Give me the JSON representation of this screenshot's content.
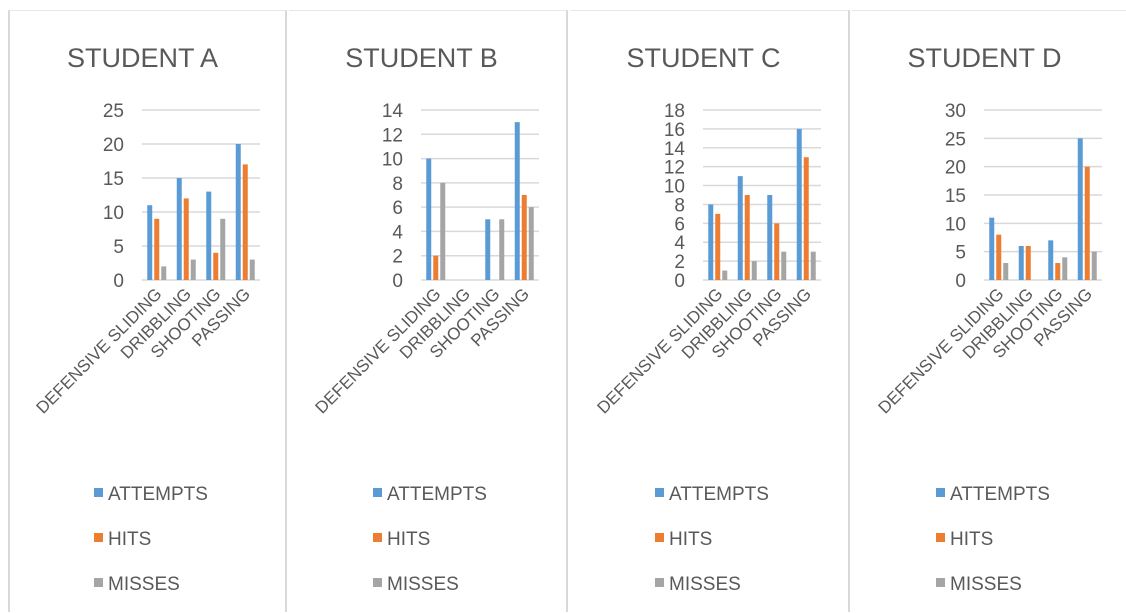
{
  "colors": {
    "attempts": "#5b9bd5",
    "hits": "#ed7d31",
    "misses": "#a5a5a5",
    "grid": "#d9d9d9",
    "text": "#595959"
  },
  "legend": [
    "ATTEMPTS",
    "HITS",
    "MISSES"
  ],
  "chart_data": [
    {
      "type": "bar",
      "title": "STUDENT A",
      "categories": [
        "DEFENSIVE SLIDING",
        "DRIBBLING",
        "SHOOTING",
        "PASSING"
      ],
      "series": [
        {
          "name": "ATTEMPTS",
          "values": [
            11,
            15,
            13,
            20
          ]
        },
        {
          "name": "HITS",
          "values": [
            9,
            12,
            4,
            17
          ]
        },
        {
          "name": "MISSES",
          "values": [
            2,
            3,
            9,
            3
          ]
        }
      ],
      "ylim": [
        0,
        25
      ],
      "yticks": [
        0,
        5,
        10,
        15,
        20,
        25
      ],
      "grid": true,
      "legend_position": "bottom"
    },
    {
      "type": "bar",
      "title": "STUDENT B",
      "categories": [
        "DEFENSIVE SLIDING",
        "DRIBBLING",
        "SHOOTING",
        "PASSING"
      ],
      "series": [
        {
          "name": "ATTEMPTS",
          "values": [
            10,
            0,
            5,
            13
          ]
        },
        {
          "name": "HITS",
          "values": [
            2,
            0,
            0,
            7
          ]
        },
        {
          "name": "MISSES",
          "values": [
            8,
            0,
            5,
            6
          ]
        }
      ],
      "ylim": [
        0,
        14
      ],
      "yticks": [
        0,
        2,
        4,
        6,
        8,
        10,
        12,
        14
      ],
      "grid": true,
      "legend_position": "bottom"
    },
    {
      "type": "bar",
      "title": "STUDENT C",
      "categories": [
        "DEFENSIVE SLIDING",
        "DRIBBLING",
        "SHOOTING",
        "PASSING"
      ],
      "series": [
        {
          "name": "ATTEMPTS",
          "values": [
            8,
            11,
            9,
            16
          ]
        },
        {
          "name": "HITS",
          "values": [
            7,
            9,
            6,
            13
          ]
        },
        {
          "name": "MISSES",
          "values": [
            1,
            2,
            3,
            3
          ]
        }
      ],
      "ylim": [
        0,
        18
      ],
      "yticks": [
        0,
        2,
        4,
        6,
        8,
        10,
        12,
        14,
        16,
        18
      ],
      "grid": true,
      "legend_position": "bottom"
    },
    {
      "type": "bar",
      "title": "STUDENT D",
      "categories": [
        "DEFENSIVE SLIDING",
        "DRIBBLING",
        "SHOOTING",
        "PASSING"
      ],
      "series": [
        {
          "name": "ATTEMPTS",
          "values": [
            11,
            6,
            7,
            25
          ]
        },
        {
          "name": "HITS",
          "values": [
            8,
            6,
            3,
            20
          ]
        },
        {
          "name": "MISSES",
          "values": [
            3,
            0,
            4,
            5
          ]
        }
      ],
      "ylim": [
        0,
        30
      ],
      "yticks": [
        0,
        5,
        10,
        15,
        20,
        25,
        30
      ],
      "grid": true,
      "legend_position": "bottom"
    }
  ]
}
